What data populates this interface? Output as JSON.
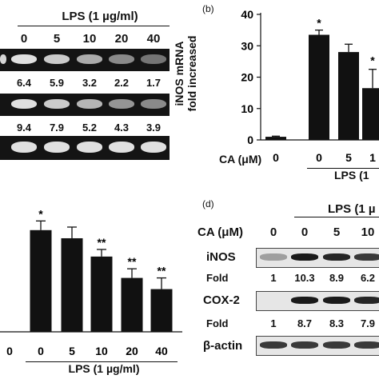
{
  "panel_a": {
    "lps_header": "LPS (1 µg/ml)",
    "doses": [
      "0",
      "5",
      "10",
      "20",
      "40"
    ],
    "row1_values": [
      "6.4",
      "5.9",
      "3.2",
      "2.2",
      "1.7"
    ],
    "row2_values": [
      "9.4",
      "7.9",
      "5.2",
      "4.3",
      "3.9"
    ]
  },
  "panel_b": {
    "tag": "(b)",
    "ylabel_line1": "iNOS mRNA",
    "ylabel_line2": "fold increased",
    "yticks": [
      "0",
      "10",
      "20",
      "30",
      "40"
    ],
    "ca_label": "CA (μM)",
    "xlabels": [
      "0",
      "0",
      "5",
      "1"
    ],
    "lps_label": "LPS (1",
    "stars": [
      "*",
      "*"
    ]
  },
  "panel_c": {
    "xlabels": [
      "0",
      "0",
      "5",
      "10",
      "20",
      "40"
    ],
    "lps_label": "LPS (1 µg/ml)",
    "stars": [
      "*",
      "**",
      "**",
      "**"
    ]
  },
  "panel_d": {
    "tag": "(d)",
    "lps_label": "LPS (1 µ",
    "ca_label": "CA (μM)",
    "ca_values": [
      "0",
      "0",
      "5",
      "10"
    ],
    "row_inos": "iNOS",
    "row_cox2": "COX-2",
    "row_actin": "β-actin",
    "fold_label": "Fold",
    "inos_fold": [
      "1",
      "10.3",
      "8.9",
      "6.2"
    ],
    "cox2_fold": [
      "1",
      "8.7",
      "8.3",
      "7.9"
    ]
  },
  "chart_data": [
    {
      "type": "bar",
      "categories": [
        "0",
        "0",
        "5",
        "10"
      ],
      "values": [
        1,
        33.5,
        28,
        16.5
      ],
      "errors": [
        0.2,
        1.5,
        2.5,
        6
      ],
      "xlabel": "CA (μM)",
      "ylabel": "iNOS mRNA fold increased",
      "ylim": [
        0,
        40
      ]
    },
    {
      "type": "bar",
      "categories": [
        "0",
        "0",
        "5",
        "10",
        "20",
        "40"
      ],
      "values": [
        0,
        100,
        92,
        74,
        53,
        42
      ],
      "errors": [
        0,
        9,
        11,
        7,
        9,
        11
      ],
      "ylim": [
        0,
        125
      ]
    }
  ]
}
